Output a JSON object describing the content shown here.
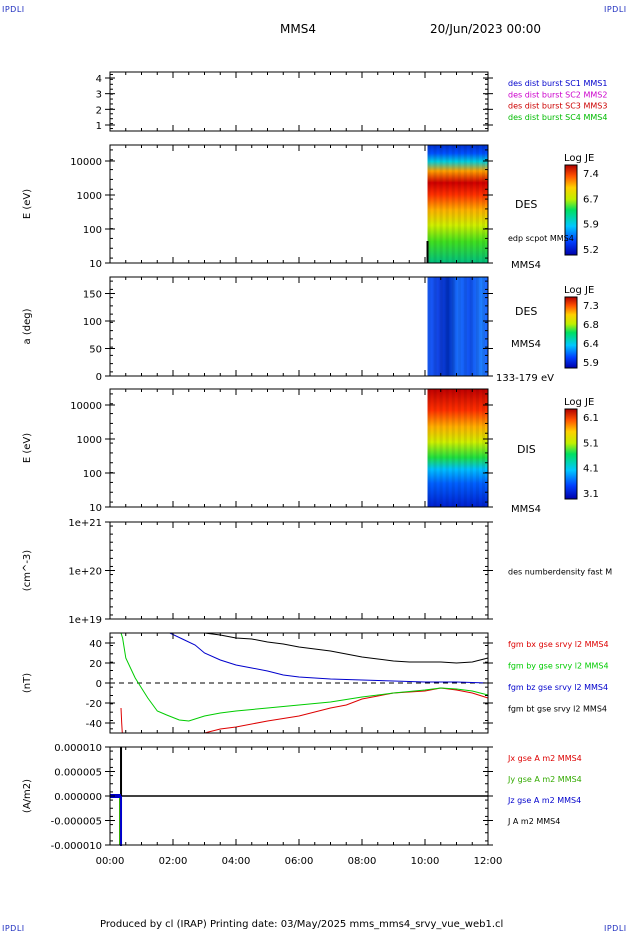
{
  "corners": {
    "tl": "IPDLI",
    "tr": "IPDLI",
    "bl": "IPDLI",
    "br": "IPDLI"
  },
  "header": {
    "spacecraft": "MMS4",
    "datetime": "20/Jun/2023 00:00"
  },
  "footer": "Produced by cl (IRAP)   Printing date: 03/May/2025   mms_mms4_srvy_vue_web1.cl",
  "x_ticks": [
    "00:00",
    "02:00",
    "04:00",
    "06:00",
    "08:00",
    "10:00",
    "12:00"
  ],
  "chart_data": [
    {
      "id": "burst",
      "type": "line",
      "y_ticks": [
        "4",
        "3",
        "2",
        "1"
      ],
      "legend": [
        {
          "text": "des dist burst SC1 MMS1",
          "color": "#0000cc"
        },
        {
          "text": "des dist burst SC2 MMS2",
          "color": "#cc00cc"
        },
        {
          "text": "des dist burst SC3 MMS3",
          "color": "#cc0000"
        },
        {
          "text": "des dist burst SC4 MMS4",
          "color": "#00bb00"
        }
      ]
    },
    {
      "id": "des_energy",
      "type": "heatmap",
      "ylabel": "E (eV)",
      "y_ticks": [
        "10000",
        "1000",
        "100",
        "10"
      ],
      "labels": [
        "DES",
        "edp scpot MMS4",
        "MMS4"
      ],
      "colorbar": {
        "title": "Log JE",
        "ticks": [
          "7.4",
          "6.7",
          "5.9",
          "5.2"
        ]
      },
      "data_start": "10:05",
      "data_end": "12:00"
    },
    {
      "id": "des_pitch",
      "type": "heatmap",
      "ylabel": "a (deg)",
      "y_ticks": [
        "150",
        "100",
        "50",
        "0"
      ],
      "labels": [
        "DES",
        "MMS4",
        "133-179 eV"
      ],
      "colorbar": {
        "title": "Log JE",
        "ticks": [
          "7.3",
          "6.8",
          "6.4",
          "5.9"
        ]
      },
      "data_start": "10:05",
      "data_end": "12:00"
    },
    {
      "id": "dis_energy",
      "type": "heatmap",
      "ylabel": "E (eV)",
      "y_ticks": [
        "10000",
        "1000",
        "100",
        "10"
      ],
      "labels": [
        "DIS",
        "MMS4"
      ],
      "colorbar": {
        "title": "Log JE",
        "ticks": [
          "6.1",
          "5.1",
          "4.1",
          "3.1"
        ]
      },
      "data_start": "10:05",
      "data_end": "12:00"
    },
    {
      "id": "density",
      "type": "line",
      "ylabel": "(cm^-3)",
      "y_ticks": [
        "1e+21",
        "1e+20",
        "1e+19"
      ],
      "legend": [
        {
          "text": "des numberdensity fast M",
          "color": "#000000"
        }
      ]
    },
    {
      "id": "fgm",
      "type": "line",
      "ylabel": "(nT)",
      "y_ticks": [
        "40",
        "20",
        "0",
        "-20",
        "-40"
      ],
      "ylim": [
        -50,
        50
      ],
      "legend": [
        {
          "text": "fgm bx gse srvy l2 MMS4",
          "color": "#dd0000"
        },
        {
          "text": "fgm by gse srvy l2 MMS4",
          "color": "#00cc00"
        },
        {
          "text": "fgm bz gse srvy l2 MMS4",
          "color": "#0000cc"
        },
        {
          "text": "fgm bt gse srvy l2 MMS4",
          "color": "#000000"
        }
      ],
      "series": [
        {
          "name": "fgm bt gse srvy l2 MMS4",
          "color": "#000000",
          "x": [
            1.9,
            2.5,
            3.0,
            3.5,
            4.0,
            4.5,
            5.0,
            5.5,
            6.0,
            6.5,
            7.0,
            7.5,
            8.0,
            8.5,
            9.0,
            9.5,
            10.0,
            10.5,
            11.0,
            11.5,
            12.0
          ],
          "y": [
            50,
            50,
            50,
            48,
            45,
            44,
            41,
            39,
            36,
            34,
            32,
            29,
            26,
            24,
            22,
            21,
            21,
            21,
            20,
            21,
            25
          ]
        },
        {
          "name": "fgm bz gse srvy l2 MMS4",
          "color": "#0000cc",
          "x": [
            1.9,
            2.3,
            2.7,
            3.0,
            3.5,
            4.0,
            4.5,
            5.0,
            5.5,
            6.0,
            7.0,
            8.0,
            9.0,
            10.0,
            11.0,
            12.0
          ],
          "y": [
            50,
            44,
            38,
            30,
            23,
            18,
            15,
            12,
            8,
            6,
            4,
            3,
            2,
            1,
            1,
            0
          ]
        },
        {
          "name": "fgm by gse srvy l2 MMS4",
          "color": "#00cc00",
          "x": [
            0.35,
            0.4,
            0.5,
            0.8,
            1.2,
            1.5,
            1.8,
            2.2,
            2.5,
            3.0,
            3.5,
            4.0,
            5.0,
            6.0,
            7.0,
            8.0,
            9.0,
            10.0,
            10.5,
            11.0,
            11.5,
            12.0
          ],
          "y": [
            50,
            45,
            25,
            5,
            -15,
            -28,
            -32,
            -37,
            -38,
            -33,
            -30,
            -28,
            -25,
            -22,
            -19,
            -14,
            -10,
            -7,
            -5,
            -6,
            -8,
            -12
          ]
        },
        {
          "name": "fgm bx gse srvy l2 MMS4",
          "color": "#dd0000",
          "x": [
            0.35,
            0.37,
            0.39,
            2.5,
            3.0,
            3.5,
            4.0,
            5.0,
            6.0,
            7.0,
            7.5,
            8.0,
            8.5,
            9.0,
            10.0,
            10.5,
            11.0,
            11.5,
            12.0
          ],
          "y": [
            -25,
            -40,
            -50,
            -50,
            -50,
            -46,
            -44,
            -38,
            -33,
            -25,
            -22,
            -16,
            -13,
            -10,
            -8,
            -5,
            -7,
            -10,
            -15
          ]
        }
      ]
    },
    {
      "id": "current",
      "type": "line",
      "ylabel": "(A/m2)",
      "y_ticks": [
        "0.000010",
        "0.000005",
        "0.000000",
        "-0.000005",
        "-0.000010"
      ],
      "ylim": [
        -1e-05,
        1e-05
      ],
      "legend": [
        {
          "text": "Jx gse A m2 MMS4",
          "color": "#dd0000"
        },
        {
          "text": "Jy gse A m2 MMS4",
          "color": "#33aa00"
        },
        {
          "text": "Jz gse A m2 MMS4",
          "color": "#0000cc"
        },
        {
          "text": "J A m2 MMS4",
          "color": "#000000"
        }
      ]
    }
  ]
}
